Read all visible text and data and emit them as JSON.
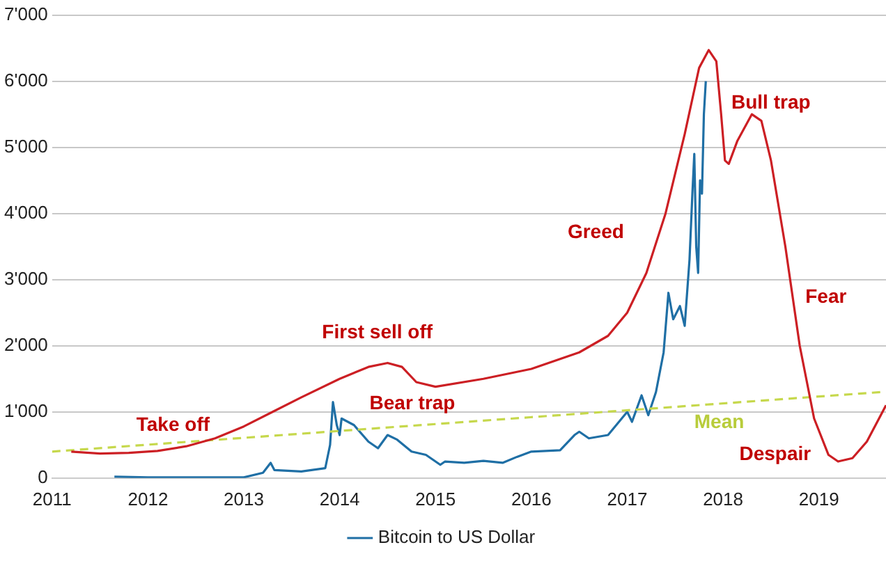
{
  "chart_data": {
    "type": "line",
    "xlim": [
      2011,
      2019.7
    ],
    "xticks": [
      2011,
      2012,
      2013,
      2014,
      2015,
      2016,
      2017,
      2018,
      2019
    ],
    "ylim": [
      0,
      7000
    ],
    "yticks": [
      0,
      {
        "value": 1000,
        "label": "1'000"
      },
      {
        "value": 2000,
        "label": "2'000"
      },
      {
        "value": 3000,
        "label": "3'000"
      },
      {
        "value": 4000,
        "label": "4'000"
      },
      {
        "value": 5000,
        "label": "5'000"
      },
      {
        "value": 6000,
        "label": "6'000"
      },
      {
        "value": 7000,
        "label": "7'000"
      }
    ],
    "grid": "y",
    "legend": "bottom",
    "marker": "none",
    "line_style": "solid",
    "series": [
      {
        "color": "#cc1f24",
        "x": [
          2011.2,
          2011.5,
          2011.8,
          2012.1,
          2012.4,
          2012.7,
          2013.0,
          2013.3,
          2013.6,
          2014.0,
          2014.3,
          2014.5,
          2014.65,
          2014.8,
          2015.0,
          2015.5,
          2016.0,
          2016.5,
          2016.8,
          2017.0,
          2017.2,
          2017.4,
          2017.6,
          2017.75,
          2017.85,
          2017.93,
          2017.98,
          2018.02,
          2018.06,
          2018.15,
          2018.3,
          2018.4,
          2018.5,
          2018.65,
          2018.8,
          2018.95,
          2019.1,
          2019.2,
          2019.35,
          2019.5,
          2019.7
        ],
        "values": [
          400,
          370,
          380,
          410,
          480,
          600,
          780,
          1000,
          1220,
          1500,
          1680,
          1740,
          1680,
          1450,
          1380,
          1500,
          1650,
          1900,
          2150,
          2500,
          3100,
          4000,
          5200,
          6200,
          6470,
          6300,
          5500,
          4800,
          4750,
          5100,
          5500,
          5400,
          4800,
          3500,
          2000,
          900,
          350,
          250,
          300,
          550,
          1100
        ]
      },
      {
        "color": "#c6d84c",
        "line_style": "dashed",
        "x": [
          2011,
          2019.65
        ],
        "values": [
          400,
          1300
        ]
      },
      {
        "name": "Bitcoin to US Dollar",
        "color": "#1f6fa5",
        "x": [
          2011.65,
          2012.0,
          2012.5,
          2013.0,
          2013.2,
          2013.28,
          2013.32,
          2013.6,
          2013.85,
          2013.9,
          2013.93,
          2013.97,
          2014.0,
          2014.02,
          2014.15,
          2014.3,
          2014.4,
          2014.5,
          2014.6,
          2014.75,
          2014.9,
          2015.05,
          2015.1,
          2015.3,
          2015.5,
          2015.7,
          2015.85,
          2016.0,
          2016.3,
          2016.45,
          2016.5,
          2016.6,
          2016.8,
          2017.0,
          2017.05,
          2017.15,
          2017.22,
          2017.3,
          2017.38,
          2017.43,
          2017.48,
          2017.55,
          2017.6,
          2017.65,
          2017.68,
          2017.7,
          2017.72,
          2017.74,
          2017.76,
          2017.78,
          2017.8,
          2017.82
        ],
        "values": [
          20,
          10,
          10,
          10,
          80,
          230,
          120,
          100,
          150,
          500,
          1150,
          800,
          650,
          900,
          800,
          550,
          450,
          650,
          580,
          400,
          350,
          200,
          250,
          230,
          260,
          230,
          320,
          400,
          420,
          650,
          700,
          600,
          650,
          1000,
          850,
          1250,
          950,
          1300,
          1900,
          2800,
          2400,
          2600,
          2300,
          3300,
          4300,
          4900,
          3500,
          3100,
          4500,
          4300,
          5500,
          6000
        ]
      }
    ],
    "annotations": [
      "Take off",
      "First sell off",
      "Bear trap",
      "Greed",
      "Bull trap",
      "Fear",
      "Despair",
      "Mean"
    ]
  }
}
